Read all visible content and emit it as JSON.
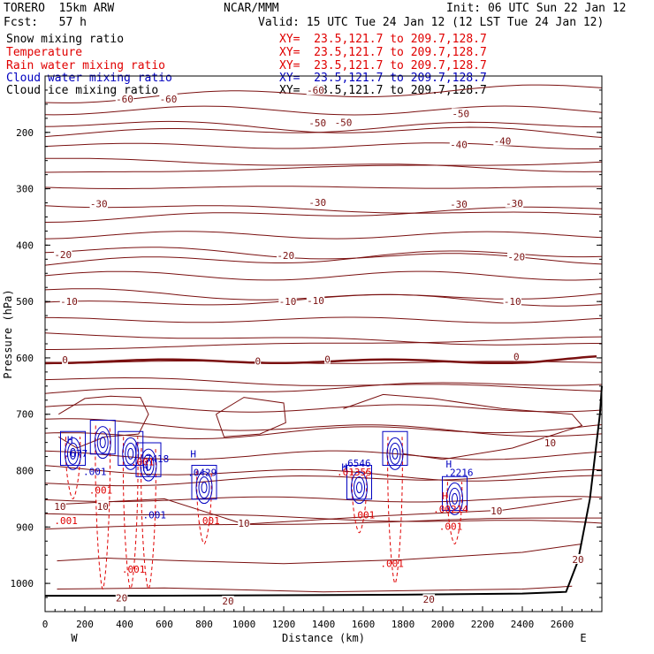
{
  "header": {
    "model": "TORERO  15km ARW",
    "center": "NCAR/MMM",
    "init": "Init: 06 UTC Sun 22 Jan 12",
    "fcst": "Fcst:   57 h",
    "valid": "Valid: 15 UTC Tue 24 Jan 12 (12 LST Tue 24 Jan 12)"
  },
  "fields": [
    {
      "name": "Snow mixing ratio",
      "xy": "XY=  23.5,121.7 to 209.7,128.7",
      "color": "#000000"
    },
    {
      "name": "Temperature",
      "xy": "XY=  23.5,121.7 to 209.7,128.7",
      "color": "#7a1010"
    },
    {
      "name": "Rain water mixing ratio",
      "xy": "XY=  23.5,121.7 to 209.7,128.7",
      "color": "#e00000"
    },
    {
      "name": "Cloud water mixing ratio",
      "xy": "XY=  23.5,121.7 to 209.7,128.7",
      "color": "#0000c0"
    },
    {
      "name": "Cloud ice mixing ratio",
      "xy": "XY=  23.5,121.7 to 209.7,128.7",
      "color": "#000000"
    }
  ],
  "chart_data": {
    "type": "contour",
    "xlabel": "Distance (km)",
    "ylabel": "Pressure (hPa)",
    "xlim": [
      0,
      2800
    ],
    "ylim": [
      1050,
      100
    ],
    "xticks": [
      0,
      200,
      400,
      600,
      800,
      1000,
      1200,
      1400,
      1600,
      1800,
      2000,
      2200,
      2400,
      2600
    ],
    "yticks": [
      200,
      300,
      400,
      500,
      600,
      700,
      800,
      900,
      1000
    ],
    "left_end": "W",
    "right_end": "E",
    "temperature_labels": [
      {
        "x": 1360,
        "p": 127,
        "text": "-60"
      },
      {
        "x": 400,
        "p": 142,
        "text": "-60"
      },
      {
        "x": 620,
        "p": 142,
        "text": "-60"
      },
      {
        "x": 1370,
        "p": 185,
        "text": "-50"
      },
      {
        "x": 1500,
        "p": 184,
        "text": "-50"
      },
      {
        "x": 2090,
        "p": 168,
        "text": "-50"
      },
      {
        "x": 2080,
        "p": 223,
        "text": "-40"
      },
      {
        "x": 2300,
        "p": 217,
        "text": "-40"
      },
      {
        "x": 270,
        "p": 328,
        "text": "-30"
      },
      {
        "x": 1370,
        "p": 326,
        "text": "-30"
      },
      {
        "x": 2080,
        "p": 329,
        "text": "-30"
      },
      {
        "x": 2360,
        "p": 327,
        "text": "-30"
      },
      {
        "x": 90,
        "p": 418,
        "text": "-20"
      },
      {
        "x": 1210,
        "p": 420,
        "text": "-20"
      },
      {
        "x": 2370,
        "p": 422,
        "text": "-20"
      },
      {
        "x": 120,
        "p": 501,
        "text": "-10"
      },
      {
        "x": 1220,
        "p": 501,
        "text": "-10"
      },
      {
        "x": 1360,
        "p": 500,
        "text": "-10"
      },
      {
        "x": 2350,
        "p": 501,
        "text": "-10"
      },
      {
        "x": 100,
        "p": 605,
        "text": "0"
      },
      {
        "x": 1070,
        "p": 607,
        "text": "0"
      },
      {
        "x": 1420,
        "p": 604,
        "text": "0"
      },
      {
        "x": 2370,
        "p": 599,
        "text": "0"
      },
      {
        "x": 2540,
        "p": 752,
        "text": "10"
      },
      {
        "x": 75,
        "p": 865,
        "text": "10"
      },
      {
        "x": 290,
        "p": 865,
        "text": "10"
      },
      {
        "x": 1000,
        "p": 895,
        "text": "10"
      },
      {
        "x": 2270,
        "p": 873,
        "text": "10"
      },
      {
        "x": 2680,
        "p": 959,
        "text": "20"
      },
      {
        "x": 385,
        "p": 1027,
        "text": "20"
      },
      {
        "x": 920,
        "p": 1033,
        "text": "20"
      },
      {
        "x": 1930,
        "p": 1030,
        "text": "20"
      }
    ],
    "rain_labels": [
      {
        "x": 105,
        "p": 890,
        "text": ".001"
      },
      {
        "x": 280,
        "p": 836,
        "text": ".001"
      },
      {
        "x": 445,
        "p": 976,
        "text": ".001"
      },
      {
        "x": 490,
        "p": 786,
        "text": ".001"
      },
      {
        "x": 820,
        "p": 890,
        "text": ".001"
      },
      {
        "x": 1600,
        "p": 880,
        "text": ".001"
      },
      {
        "x": 1745,
        "p": 966,
        "text": ".001"
      },
      {
        "x": 2040,
        "p": 900,
        "text": ".001"
      },
      {
        "x": 1555,
        "p": 804,
        "text": ".01355"
      },
      {
        "x": 2040,
        "p": 870,
        "text": ".00214"
      },
      {
        "x": 2010,
        "p": 846,
        "text": "H"
      }
    ],
    "cloud_water_labels": [
      {
        "x": 155,
        "p": 771,
        "text": ".677"
      },
      {
        "x": 250,
        "p": 803,
        "text": ".001"
      },
      {
        "x": 550,
        "p": 780,
        "text": ".7418"
      },
      {
        "x": 550,
        "p": 880,
        "text": ".001"
      },
      {
        "x": 790,
        "p": 805,
        "text": ".0429"
      },
      {
        "x": 1565,
        "p": 788,
        "text": ".6546"
      },
      {
        "x": 2080,
        "p": 805,
        "text": ".2216"
      },
      {
        "x": 125,
        "p": 747,
        "text": "H"
      },
      {
        "x": 505,
        "p": 796,
        "text": "H"
      },
      {
        "x": 745,
        "p": 772,
        "text": "H"
      },
      {
        "x": 1505,
        "p": 795,
        "text": "H"
      },
      {
        "x": 2030,
        "p": 790,
        "text": "H"
      }
    ]
  }
}
